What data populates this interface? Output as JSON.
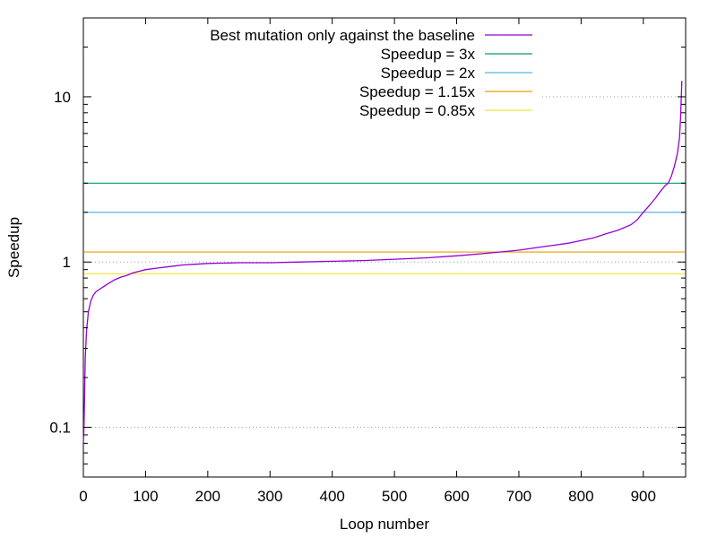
{
  "chart_data": {
    "type": "line",
    "title": "",
    "xlabel": "Loop number",
    "ylabel": "Speedup",
    "xlim": [
      0,
      968
    ],
    "ylim": [
      0.05,
      30
    ],
    "yscale": "log",
    "xticks": [
      0,
      100,
      200,
      300,
      400,
      500,
      600,
      700,
      800,
      900
    ],
    "yticks": [
      0.1,
      1,
      10
    ],
    "ytick_labels": [
      "0.1",
      "1",
      "10"
    ],
    "grid": "dotted at y = 0.1, 1, 10",
    "legend_position": "top-right",
    "series": [
      {
        "name": "Best mutation only against the baseline",
        "color": "#9400d3",
        "x": [
          0,
          1,
          2,
          3,
          5,
          8,
          12,
          16,
          20,
          25,
          30,
          40,
          50,
          60,
          70,
          80,
          90,
          100,
          120,
          140,
          160,
          180,
          200,
          250,
          300,
          350,
          400,
          450,
          500,
          550,
          600,
          650,
          700,
          720,
          740,
          760,
          780,
          800,
          820,
          840,
          860,
          880,
          890,
          900,
          910,
          920,
          925,
          930,
          935,
          940,
          945,
          950,
          955,
          958,
          960,
          962
        ],
        "y": [
          0.08,
          0.1,
          0.16,
          0.26,
          0.38,
          0.5,
          0.58,
          0.63,
          0.66,
          0.68,
          0.7,
          0.74,
          0.78,
          0.81,
          0.83,
          0.86,
          0.88,
          0.9,
          0.92,
          0.94,
          0.96,
          0.97,
          0.98,
          0.99,
          0.99,
          1.0,
          1.01,
          1.02,
          1.04,
          1.06,
          1.09,
          1.13,
          1.18,
          1.21,
          1.24,
          1.27,
          1.3,
          1.35,
          1.4,
          1.48,
          1.56,
          1.68,
          1.8,
          2.0,
          2.2,
          2.45,
          2.6,
          2.75,
          2.9,
          3.0,
          3.3,
          3.8,
          4.6,
          5.6,
          7.5,
          12.5
        ]
      },
      {
        "name": "Speedup = 3x",
        "color": "#009e73",
        "constant": 3
      },
      {
        "name": "Speedup = 2x",
        "color": "#56b4e9",
        "constant": 2
      },
      {
        "name": "Speedup = 1.15x",
        "color": "#e69f00",
        "constant": 1.15
      },
      {
        "name": "Speedup = 0.85x",
        "color": "#f0e442",
        "constant": 0.85
      }
    ]
  }
}
